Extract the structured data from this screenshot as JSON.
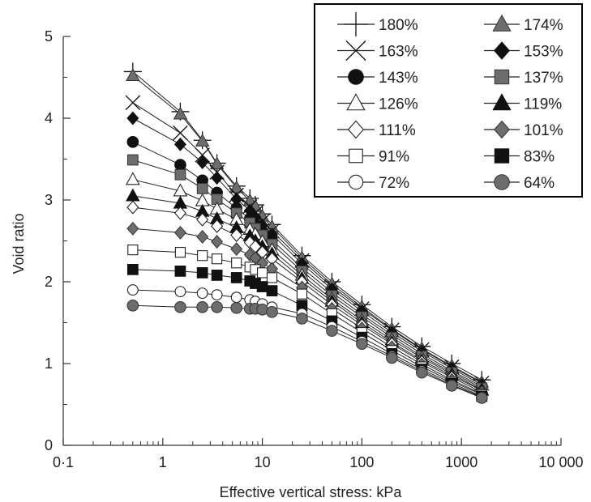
{
  "chart_data": {
    "type": "line",
    "title": "",
    "xlabel": "Effective vertical stress: kPa",
    "ylabel": "Void ratio",
    "xscale": "log",
    "xlim": [
      0.1,
      10000
    ],
    "ylim": [
      0,
      5
    ],
    "x_ticks": [
      {
        "value": 0.1,
        "label": "0·1"
      },
      {
        "value": 1,
        "label": "1"
      },
      {
        "value": 10,
        "label": "10"
      },
      {
        "value": 100,
        "label": "100"
      },
      {
        "value": 1000,
        "label": "1000"
      },
      {
        "value": 10000,
        "label": "10 000"
      }
    ],
    "y_ticks": [
      {
        "value": 0,
        "label": "0"
      },
      {
        "value": 1,
        "label": "1"
      },
      {
        "value": 2,
        "label": "2"
      },
      {
        "value": 3,
        "label": "3"
      },
      {
        "value": 4,
        "label": "4"
      },
      {
        "value": 5,
        "label": "5"
      }
    ],
    "grid": false,
    "legend_position": "top-right",
    "x": [
      0.5,
      1.5,
      2.5,
      3.5,
      5.5,
      7.5,
      8.5,
      10,
      12.5,
      25,
      50,
      100,
      200,
      400,
      800,
      1600
    ],
    "series": [
      {
        "name": "180%",
        "marker": "plus",
        "values": [
          4.57,
          4.08,
          3.73,
          3.45,
          3.17,
          3.02,
          2.94,
          2.83,
          2.7,
          2.32,
          2.0,
          1.72,
          1.45,
          1.21,
          1.0,
          0.8
        ]
      },
      {
        "name": "174%",
        "marker": "triangle-filled-gray",
        "values": [
          4.52,
          4.05,
          3.72,
          3.44,
          3.15,
          2.99,
          2.92,
          2.8,
          2.67,
          2.29,
          1.97,
          1.69,
          1.42,
          1.18,
          0.97,
          0.77
        ]
      },
      {
        "name": "163%",
        "marker": "x",
        "values": [
          4.19,
          3.82,
          3.55,
          3.34,
          3.06,
          2.92,
          2.84,
          2.74,
          2.62,
          2.26,
          1.94,
          1.67,
          1.41,
          1.17,
          0.96,
          0.76
        ]
      },
      {
        "name": "153%",
        "marker": "diamond-filled",
        "values": [
          4.0,
          3.68,
          3.46,
          3.27,
          3.01,
          2.87,
          2.79,
          2.69,
          2.58,
          2.22,
          1.91,
          1.64,
          1.38,
          1.15,
          0.94,
          0.74
        ]
      },
      {
        "name": "143%",
        "marker": "circle-filled",
        "values": [
          3.71,
          3.43,
          3.24,
          3.09,
          2.9,
          2.77,
          2.7,
          2.61,
          2.51,
          2.17,
          1.87,
          1.6,
          1.35,
          1.12,
          0.91,
          0.72
        ]
      },
      {
        "name": "137%",
        "marker": "square-filled-gray",
        "values": [
          3.49,
          3.31,
          3.14,
          3.01,
          2.84,
          2.72,
          2.65,
          2.57,
          2.46,
          2.13,
          1.83,
          1.57,
          1.32,
          1.09,
          0.89,
          0.7
        ]
      },
      {
        "name": "126%",
        "marker": "triangle-open",
        "values": [
          3.25,
          3.11,
          2.99,
          2.89,
          2.76,
          2.64,
          2.58,
          2.49,
          2.39,
          2.08,
          1.79,
          1.53,
          1.29,
          1.07,
          0.87,
          0.68
        ]
      },
      {
        "name": "119%",
        "marker": "triangle-filled",
        "values": [
          3.05,
          2.96,
          2.86,
          2.77,
          2.66,
          2.56,
          2.5,
          2.43,
          2.34,
          2.04,
          1.76,
          1.5,
          1.26,
          1.04,
          0.85,
          0.67
        ]
      },
      {
        "name": "111%",
        "marker": "diamond-open",
        "values": [
          2.91,
          2.84,
          2.76,
          2.68,
          2.57,
          2.48,
          2.43,
          2.36,
          2.28,
          2.0,
          1.72,
          1.47,
          1.24,
          1.02,
          0.83,
          0.65
        ]
      },
      {
        "name": "101%",
        "marker": "diamond-filled-gray",
        "values": [
          2.65,
          2.6,
          2.55,
          2.49,
          2.4,
          2.33,
          2.29,
          2.23,
          2.16,
          1.93,
          1.67,
          1.43,
          1.2,
          0.99,
          0.8,
          0.63
        ]
      },
      {
        "name": "91%",
        "marker": "square-open",
        "values": [
          2.39,
          2.36,
          2.32,
          2.28,
          2.23,
          2.18,
          2.15,
          2.11,
          2.05,
          1.85,
          1.61,
          1.38,
          1.16,
          0.96,
          0.78,
          0.62
        ]
      },
      {
        "name": "83%",
        "marker": "square-filled",
        "values": [
          2.15,
          2.13,
          2.11,
          2.08,
          2.05,
          2.01,
          1.98,
          1.94,
          1.89,
          1.71,
          1.52,
          1.32,
          1.12,
          0.93,
          0.76,
          0.6
        ]
      },
      {
        "name": "72%",
        "marker": "circle-open",
        "values": [
          1.9,
          1.88,
          1.86,
          1.84,
          1.81,
          1.78,
          1.76,
          1.73,
          1.69,
          1.61,
          1.45,
          1.27,
          1.09,
          0.91,
          0.74,
          0.59
        ]
      },
      {
        "name": "64%",
        "marker": "circle-filled-gray",
        "values": [
          1.71,
          1.69,
          1.69,
          1.69,
          1.68,
          1.67,
          1.67,
          1.66,
          1.63,
          1.55,
          1.4,
          1.24,
          1.07,
          0.89,
          0.73,
          0.58
        ]
      }
    ]
  }
}
